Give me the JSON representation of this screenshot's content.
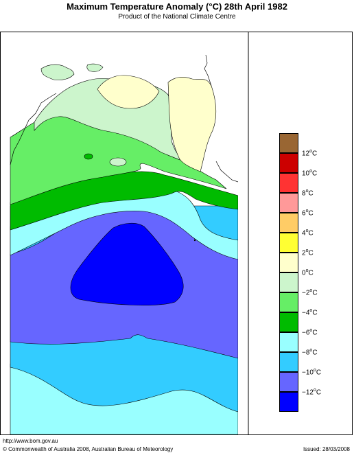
{
  "title": "Maximum Temperature Anomaly (°C)  28th April 1982",
  "subtitle": "Product of the National Climate Centre",
  "legend": [
    {
      "label": "12",
      "color": "#996633"
    },
    {
      "label": "10",
      "color": "#cc0000"
    },
    {
      "label": "8",
      "color": "#ff3333"
    },
    {
      "label": "6",
      "color": "#ff9999"
    },
    {
      "label": "4",
      "color": "#ffcc66"
    },
    {
      "label": "2",
      "color": "#ffff33"
    },
    {
      "label": "0",
      "color": "#ffffcc"
    },
    {
      "label": "−2",
      "color": "#ccf5cc"
    },
    {
      "label": "−4",
      "color": "#66ee66"
    },
    {
      "label": "−6",
      "color": "#00bb00"
    },
    {
      "label": "−8",
      "color": "#99ffff"
    },
    {
      "label": "−10",
      "color": "#33ccff"
    },
    {
      "label": "−12",
      "color": "#6666ff"
    },
    {
      "label": "",
      "color": "#0000ff"
    }
  ],
  "unit_symbol": "C",
  "unit_degree": "o",
  "footer": {
    "url": "http://www.bom.gov.au",
    "copyright": "© Commonwealth of Australia 2008, Australian Bureau of Meteorology",
    "issued": "Issued: 28/03/2008"
  }
}
